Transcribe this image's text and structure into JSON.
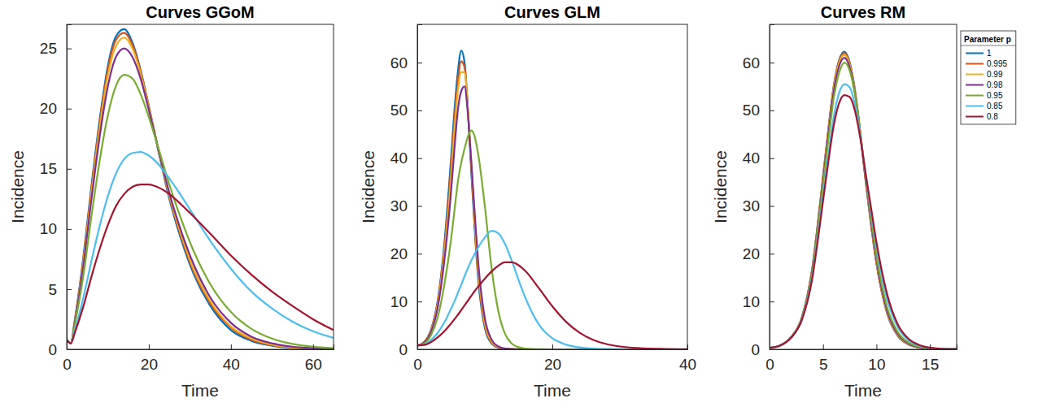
{
  "chart_data": [
    {
      "type": "line",
      "title": "Curves GGoM",
      "x_label": "Time",
      "y_label": "Incidence",
      "xlim": [
        0,
        65
      ],
      "ylim": [
        0,
        27
      ],
      "xticks": [
        0,
        20,
        40,
        60
      ],
      "yticks": [
        0,
        5,
        10,
        15,
        20,
        25
      ],
      "x": [
        0,
        1,
        2,
        4,
        6,
        8,
        10,
        12,
        14,
        16,
        18,
        20,
        22,
        25,
        28,
        31,
        35,
        40,
        45,
        50,
        55,
        60,
        65
      ],
      "series": [
        {
          "color": "#0072BD",
          "values": [
            0.8,
            0.5,
            2.5,
            7.5,
            13.5,
            19,
            23.5,
            26,
            26.6,
            25.5,
            23.2,
            20.2,
            17,
            12.5,
            9,
            6.2,
            3.6,
            1.6,
            0.7,
            0.3,
            0.12,
            0.05,
            0.02
          ]
        },
        {
          "color": "#D95319",
          "values": [
            0.8,
            0.5,
            2.4,
            7.3,
            13.2,
            18.7,
            23.2,
            25.7,
            26.3,
            25.3,
            23.1,
            20.2,
            17.1,
            12.7,
            9.2,
            6.4,
            3.8,
            1.8,
            0.8,
            0.35,
            0.15,
            0.06,
            0.03
          ]
        },
        {
          "color": "#EDB120",
          "values": [
            0.8,
            0.5,
            2.4,
            7.1,
            12.9,
            18.3,
            22.7,
            25.2,
            25.9,
            25.0,
            22.9,
            20.1,
            17.1,
            12.8,
            9.4,
            6.6,
            4.0,
            1.9,
            0.9,
            0.4,
            0.17,
            0.07,
            0.03
          ]
        },
        {
          "color": "#7E2F8E",
          "values": [
            0.8,
            0.5,
            2.3,
            6.8,
            12.4,
            17.6,
            21.8,
            24.3,
            25.0,
            24.3,
            22.5,
            19.9,
            17.1,
            13.0,
            9.7,
            7.0,
            4.3,
            2.2,
            1.05,
            0.5,
            0.22,
            0.1,
            0.04
          ]
        },
        {
          "color": "#77AC30",
          "values": [
            0.8,
            0.5,
            2.1,
            6.0,
            11.0,
            15.6,
            19.4,
            21.9,
            22.8,
            22.5,
            21.2,
            19.3,
            17.1,
            13.7,
            10.7,
            8.1,
            5.4,
            3.1,
            1.7,
            0.9,
            0.45,
            0.22,
            0.1
          ]
        },
        {
          "color": "#4DBEEE",
          "values": [
            0.8,
            0.5,
            1.6,
            4.2,
            7.3,
            10.2,
            12.7,
            14.6,
            15.8,
            16.3,
            16.4,
            16.1,
            15.5,
            14.2,
            12.7,
            11.1,
            9.0,
            6.7,
            4.8,
            3.4,
            2.3,
            1.5,
            0.95
          ]
        },
        {
          "color": "#A2142F",
          "values": [
            0.8,
            0.5,
            1.4,
            3.5,
            6.0,
            8.3,
            10.3,
            11.9,
            12.9,
            13.5,
            13.7,
            13.7,
            13.5,
            12.9,
            12.0,
            11.0,
            9.6,
            7.8,
            6.2,
            4.8,
            3.6,
            2.5,
            1.6
          ]
        }
      ]
    },
    {
      "type": "line",
      "title": "Curves GLM",
      "x_label": "Time",
      "y_label": "Incidence",
      "xlim": [
        0,
        40
      ],
      "ylim": [
        0,
        68
      ],
      "xticks": [
        0,
        20,
        40
      ],
      "yticks": [
        0,
        10,
        20,
        30,
        40,
        50,
        60
      ],
      "x": [
        0,
        1,
        2,
        3,
        4,
        5,
        5.5,
        6,
        6.5,
        7,
        7.5,
        8,
        8.5,
        9,
        10,
        11,
        12,
        13,
        14,
        15,
        16,
        18,
        20,
        22,
        24,
        26,
        28,
        30,
        33,
        36,
        40
      ],
      "series": [
        {
          "color": "#0072BD",
          "values": [
            0.8,
            1.5,
            4,
            10,
            22,
            40,
            50,
            58,
            62.5,
            60,
            50,
            37,
            25,
            15,
            4.5,
            1.2,
            0.3,
            0.1,
            0.03,
            0,
            0,
            0,
            0,
            0,
            0,
            0,
            0,
            0,
            0,
            0,
            0
          ]
        },
        {
          "color": "#D95319",
          "values": [
            0.8,
            1.5,
            3.9,
            9.6,
            21,
            38,
            48,
            56,
            60.3,
            59,
            50,
            38,
            26,
            16,
            5,
            1.4,
            0.4,
            0.1,
            0.03,
            0,
            0,
            0,
            0,
            0,
            0,
            0,
            0,
            0,
            0,
            0,
            0
          ]
        },
        {
          "color": "#EDB120",
          "values": [
            0.8,
            1.4,
            3.7,
            9.2,
            20,
            36,
            46,
            54,
            58,
            58,
            50,
            39,
            27,
            17,
            5.5,
            1.6,
            0.45,
            0.12,
            0.04,
            0.01,
            0,
            0,
            0,
            0,
            0,
            0,
            0,
            0,
            0,
            0,
            0
          ]
        },
        {
          "color": "#7E2F8E",
          "values": [
            0.8,
            1.4,
            3.5,
            8.6,
            18.5,
            33,
            42,
            50,
            54,
            55,
            49,
            39,
            28.5,
            18.5,
            6.5,
            2,
            0.6,
            0.15,
            0.05,
            0.02,
            0,
            0,
            0,
            0,
            0,
            0,
            0,
            0,
            0,
            0,
            0
          ]
        },
        {
          "color": "#77AC30",
          "values": [
            0.8,
            1.2,
            2.9,
            6.6,
            13.5,
            23,
            29,
            35,
            39,
            42,
            44.5,
            45.8,
            44.5,
            41,
            30,
            17,
            8,
            3.2,
            1.2,
            0.45,
            0.15,
            0.02,
            0,
            0,
            0,
            0,
            0,
            0,
            0,
            0,
            0
          ]
        },
        {
          "color": "#4DBEEE",
          "values": [
            0.8,
            1,
            1.9,
            3.4,
            5.6,
            8.5,
            10,
            11.8,
            13.5,
            15.3,
            17,
            18.6,
            20,
            21.3,
            23.4,
            24.8,
            24.3,
            22,
            18.5,
            14.5,
            10.8,
            5.2,
            2.3,
            1,
            0.4,
            0.15,
            0.05,
            0.02,
            0,
            0,
            0
          ]
        },
        {
          "color": "#A2142F",
          "values": [
            0.8,
            0.9,
            1.5,
            2.5,
            3.8,
            5.4,
            6.3,
            7.2,
            8.2,
            9.2,
            10.2,
            11.2,
            12.2,
            13.1,
            14.8,
            16.3,
            17.5,
            18.2,
            18.2,
            17.6,
            16.4,
            12.8,
            9,
            5.8,
            3.5,
            2,
            1.1,
            0.6,
            0.25,
            0.1,
            0.02
          ]
        }
      ]
    },
    {
      "type": "line",
      "title": "Curves RM",
      "x_label": "Time",
      "y_label": "Incidence",
      "xlim": [
        0,
        17.5
      ],
      "ylim": [
        0,
        68
      ],
      "xticks": [
        0,
        5,
        10,
        15
      ],
      "yticks": [
        0,
        10,
        20,
        30,
        40,
        50,
        60
      ],
      "legend": "upper right",
      "legend_title": "Parameter p",
      "x": [
        0,
        1,
        2,
        3,
        4,
        4.5,
        5,
        5.5,
        6,
        6.5,
        7,
        7.5,
        8,
        8.5,
        9,
        9.5,
        10,
        11,
        12,
        13,
        14,
        15,
        16,
        17.5
      ],
      "series": [
        {
          "name": "1",
          "color": "#0072BD",
          "values": [
            0.3,
            0.8,
            2.5,
            6.5,
            17,
            26,
            36,
            46,
            55,
            60.5,
            62.3,
            60,
            54,
            45,
            35,
            26,
            18,
            7.5,
            2.8,
            1,
            0.35,
            0.12,
            0.04,
            0.01
          ]
        },
        {
          "name": "0.995",
          "color": "#D95319",
          "values": [
            0.3,
            0.8,
            2.5,
            6.5,
            17,
            26,
            36,
            46,
            55,
            60.3,
            62,
            59.8,
            54,
            45,
            35,
            26,
            18,
            7.6,
            2.9,
            1.05,
            0.38,
            0.13,
            0.04,
            0.01
          ]
        },
        {
          "name": "0.99",
          "color": "#EDB120",
          "values": [
            0.3,
            0.8,
            2.5,
            6.5,
            16.8,
            25.8,
            35.7,
            45.6,
            54.6,
            59.9,
            61.6,
            59.5,
            53.8,
            45,
            35.2,
            26.3,
            18.3,
            7.8,
            3,
            1.1,
            0.4,
            0.14,
            0.05,
            0.01
          ]
        },
        {
          "name": "0.98",
          "color": "#7E2F8E",
          "values": [
            0.3,
            0.8,
            2.5,
            6.4,
            16.6,
            25.5,
            35.3,
            45,
            53.9,
            59.2,
            61,
            59,
            53.5,
            45,
            35.4,
            26.6,
            18.7,
            8.1,
            3.2,
            1.2,
            0.45,
            0.16,
            0.05,
            0.02
          ]
        },
        {
          "name": "0.95",
          "color": "#77AC30",
          "values": [
            0.3,
            0.8,
            2.4,
            6.3,
            16.2,
            24.9,
            34.4,
            43.8,
            52.5,
            57.8,
            60,
            58.3,
            53.2,
            45.2,
            36,
            27.4,
            19.6,
            8.8,
            3.6,
            1.4,
            0.55,
            0.2,
            0.07,
            0.02
          ]
        },
        {
          "name": "0.85",
          "color": "#4DBEEE",
          "values": [
            0.3,
            0.8,
            2.4,
            6.1,
            15.3,
            23.3,
            32,
            40.6,
            48.6,
            53.6,
            55.5,
            54.8,
            51,
            44.5,
            36.5,
            28.8,
            21.5,
            10.5,
            4.6,
            1.9,
            0.75,
            0.3,
            0.11,
            0.03
          ]
        },
        {
          "name": "0.8",
          "color": "#A2142F",
          "values": [
            0.3,
            0.8,
            2.4,
            6,
            14.9,
            22.6,
            31,
            39.3,
            46.8,
            51.5,
            53.2,
            52.8,
            49.8,
            44,
            36.6,
            29.5,
            22.4,
            11.5,
            5.2,
            2.2,
            0.9,
            0.35,
            0.13,
            0.04
          ]
        }
      ]
    }
  ]
}
